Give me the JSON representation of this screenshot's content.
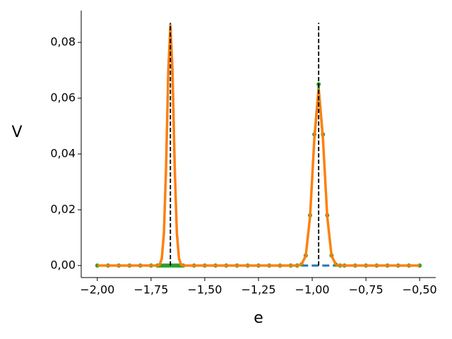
{
  "chart_data": {
    "type": "line",
    "xlabel": "e",
    "ylabel": "V",
    "x": [
      -2.0,
      -1.95,
      -1.9,
      -1.85,
      -1.8,
      -1.75,
      -1.72,
      -1.71,
      -1.7,
      -1.69,
      -1.68,
      -1.67,
      -1.66,
      -1.65,
      -1.64,
      -1.63,
      -1.62,
      -1.61,
      -1.6,
      -1.55,
      -1.5,
      -1.45,
      -1.4,
      -1.35,
      -1.3,
      -1.25,
      -1.2,
      -1.15,
      -1.1,
      -1.07,
      -1.05,
      -1.03,
      -1.01,
      -0.99,
      -0.97,
      -0.95,
      -0.93,
      -0.91,
      -0.89,
      -0.87,
      -0.85,
      -0.8,
      -0.75,
      -0.7,
      -0.65,
      -0.6,
      -0.55,
      -0.5
    ],
    "series": [
      {
        "color": "#1f77b4",
        "style": "dashed",
        "values": [
          0,
          0,
          0,
          0,
          0,
          0,
          0,
          0.0003,
          0.0025,
          0.0118,
          0.036,
          0.07,
          0.087,
          0.07,
          0.036,
          0.0118,
          0.0025,
          0.0003,
          0,
          0,
          0,
          0,
          0,
          0,
          0,
          0,
          0,
          0,
          0,
          0,
          0,
          0,
          0,
          0,
          0,
          0,
          0,
          0,
          0,
          0,
          0,
          0,
          0,
          0,
          0,
          0,
          0,
          0
        ]
      },
      {
        "color": "#2ca02c",
        "style": "dots",
        "values": [
          0,
          0,
          0,
          0,
          0,
          0,
          0,
          0,
          0,
          0,
          0,
          0,
          0,
          0,
          0,
          0,
          0,
          0,
          0,
          0,
          0,
          0,
          0,
          0,
          0,
          0,
          0,
          0,
          0,
          0,
          0.0004,
          0.0036,
          0.018,
          0.047,
          0.065,
          0.047,
          0.018,
          0.0036,
          0.0004,
          0,
          0,
          0,
          0,
          0,
          0,
          0,
          0,
          0
        ]
      },
      {
        "color": "#ff7f0e",
        "style": "solid",
        "values": [
          0,
          0,
          0,
          0,
          0,
          0,
          0,
          0.0003,
          0.0025,
          0.0117,
          0.0355,
          0.069,
          0.086,
          0.069,
          0.0355,
          0.0117,
          0.0025,
          0.0003,
          0,
          0,
          0,
          0,
          0,
          0,
          0,
          0,
          0,
          0,
          0,
          0,
          0.0004,
          0.0035,
          0.0175,
          0.0455,
          0.063,
          0.0455,
          0.0175,
          0.0035,
          0.0004,
          0,
          0,
          0,
          0,
          0,
          0,
          0,
          0,
          0
        ]
      }
    ],
    "vlines": {
      "x": [
        -1.66,
        -0.97
      ],
      "ymin": 0,
      "ymax": 0.087,
      "color": "#000000"
    },
    "xlim": [
      -2.075,
      -0.425
    ],
    "ylim": [
      -0.0043,
      0.0914
    ],
    "xticks": [
      {
        "value": -2.0,
        "label": "−2,00"
      },
      {
        "value": -1.75,
        "label": "−1,75"
      },
      {
        "value": -1.5,
        "label": "−1,50"
      },
      {
        "value": -1.25,
        "label": "−1,25"
      },
      {
        "value": -1.0,
        "label": "−1,00"
      },
      {
        "value": -0.75,
        "label": "−0,75"
      },
      {
        "value": -0.5,
        "label": "−0,50"
      }
    ],
    "yticks": [
      {
        "value": 0,
        "label": "0,00"
      },
      {
        "value": 0.02,
        "label": "0,02"
      },
      {
        "value": 0.04,
        "label": "0,04"
      },
      {
        "value": 0.06,
        "label": "0,06"
      },
      {
        "value": 0.08,
        "label": "0,08"
      }
    ]
  }
}
